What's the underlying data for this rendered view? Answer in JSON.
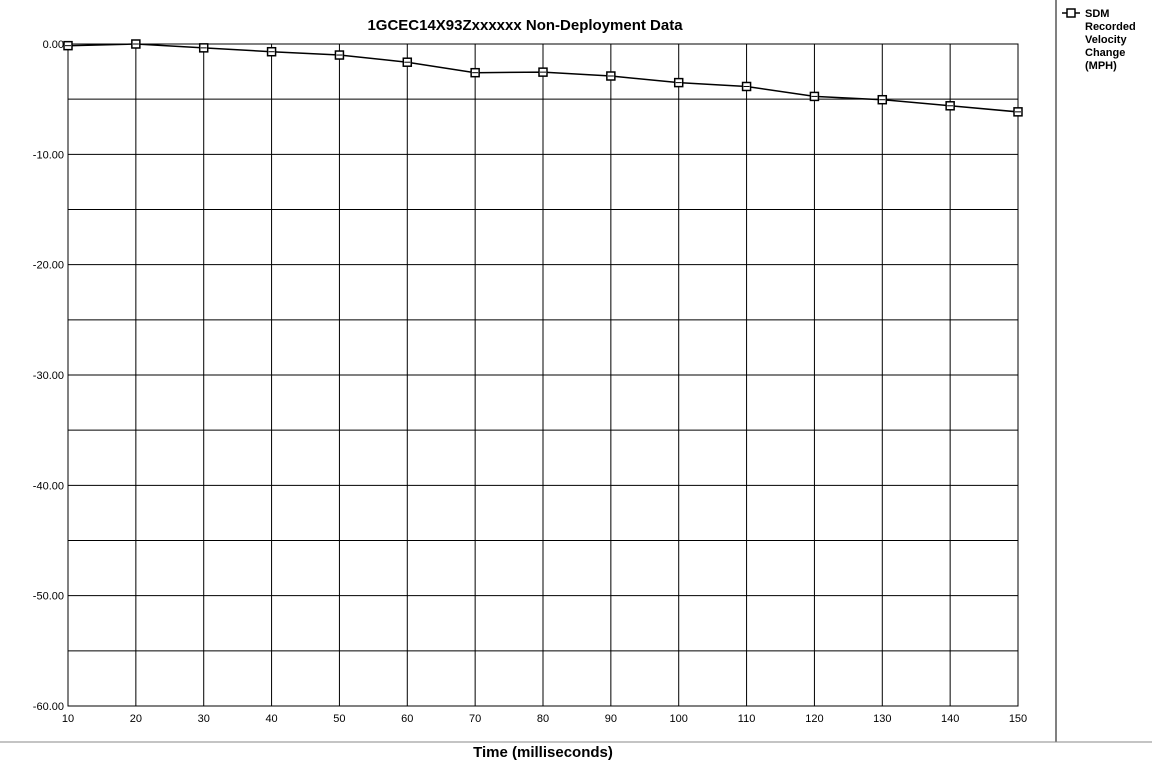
{
  "chart_data": {
    "type": "line",
    "title": "1GCEC14X93Zxxxxxx  Non-Deployment Data",
    "xlabel": "Time (milliseconds)",
    "ylabel": "",
    "x": [
      10,
      20,
      30,
      40,
      50,
      60,
      70,
      80,
      90,
      100,
      110,
      120,
      130,
      140,
      150
    ],
    "series": [
      {
        "name": "SDM Recorded Velocity Change (MPH)",
        "legend_lines": [
          "SDM",
          "Recorded",
          "Velocity",
          "Change",
          "(MPH)"
        ],
        "values": [
          -0.15,
          0.0,
          -0.35,
          -0.7,
          -1.0,
          -1.65,
          -2.6,
          -2.55,
          -2.9,
          -3.5,
          -3.85,
          -4.75,
          -5.05,
          -5.6,
          -6.15
        ],
        "color": "#000000",
        "marker": "square"
      }
    ],
    "xlim": [
      10,
      150
    ],
    "ylim": [
      -60,
      0
    ],
    "x_ticks": [
      "10",
      "20",
      "30",
      "40",
      "50",
      "60",
      "70",
      "80",
      "90",
      "100",
      "110",
      "120",
      "130",
      "140",
      "150"
    ],
    "y_ticks": [
      "0.00",
      "-10.00",
      "-20.00",
      "-30.00",
      "-40.00",
      "-50.00",
      "-60.00"
    ],
    "y_minor_step": 5,
    "grid": true,
    "legend_position": "right"
  }
}
